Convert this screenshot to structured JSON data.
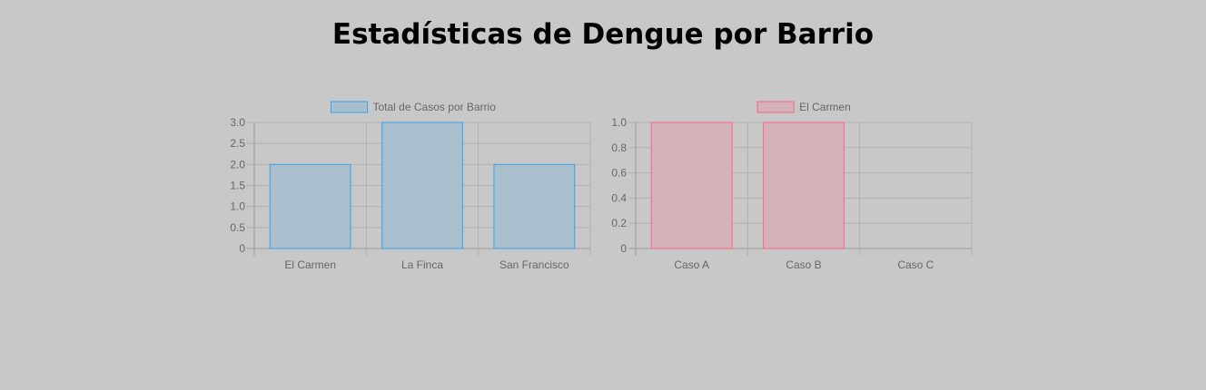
{
  "page": {
    "title": "Estadísticas de Dengue por Barrio"
  },
  "chart_data": [
    {
      "type": "bar",
      "categories": [
        "El Carmen",
        "La Finca",
        "San Francisco"
      ],
      "series": [
        {
          "name": "Total de Casos por Barrio",
          "values": [
            2,
            3,
            2
          ]
        }
      ],
      "ylim": [
        0,
        3
      ],
      "yticks": [
        "0",
        "0.5",
        "1.0",
        "1.5",
        "2.0",
        "2.5",
        "3.0"
      ],
      "ytick_values": [
        0,
        0.5,
        1,
        1.5,
        2,
        2.5,
        3
      ],
      "grid": true,
      "legend_position": "top",
      "colors": {
        "fill": "#a9bfce",
        "stroke": "#36a2eb"
      }
    },
    {
      "type": "bar",
      "categories": [
        "Caso A",
        "Caso B",
        "Caso C"
      ],
      "series": [
        {
          "name": "El Carmen",
          "values": [
            1,
            1,
            0
          ]
        }
      ],
      "ylim": [
        0,
        1
      ],
      "yticks": [
        "0",
        "0.2",
        "0.4",
        "0.6",
        "0.8",
        "1.0"
      ],
      "ytick_values": [
        0,
        0.2,
        0.4,
        0.6,
        0.8,
        1
      ],
      "grid": true,
      "legend_position": "top",
      "colors": {
        "fill": "#d3b3b9",
        "stroke": "#ff6384"
      }
    }
  ]
}
